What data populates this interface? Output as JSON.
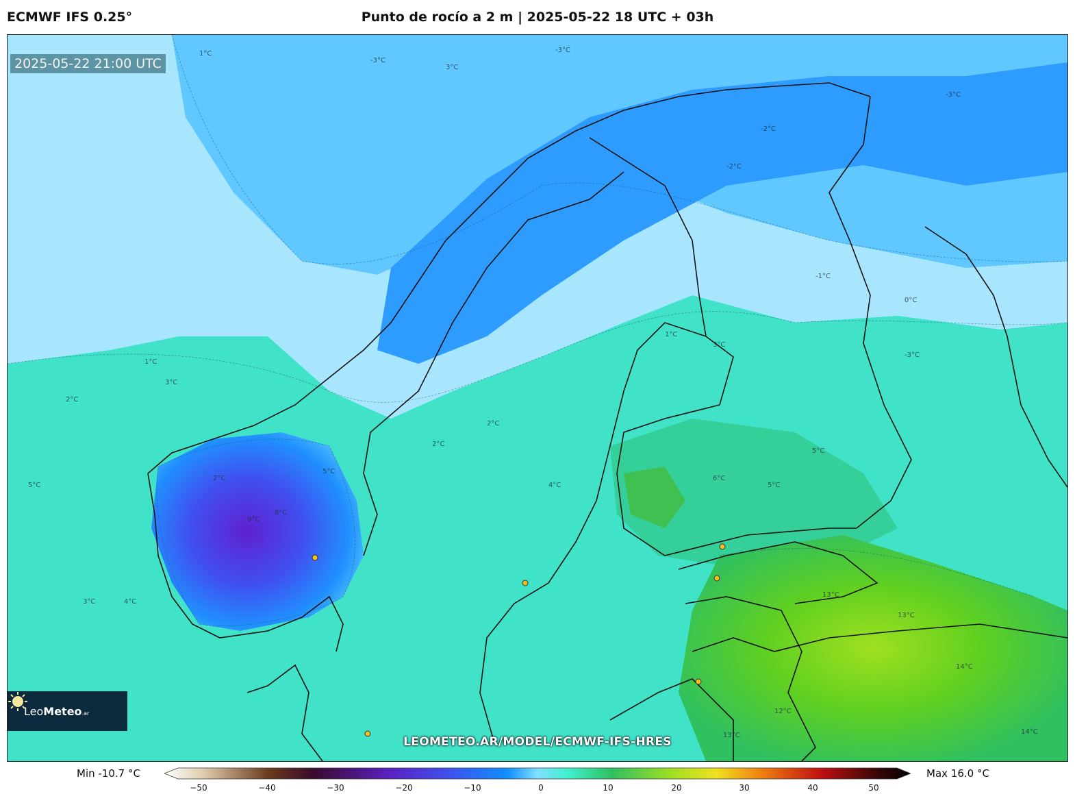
{
  "header": {
    "model": "ECMWF IFS 0.25°",
    "title": "Punto de rocío a 2 m | 2025-05-22 18 UTC + 03h"
  },
  "map": {
    "valid_time": "2025-05-22 21:00 UTC",
    "watermark": "LEOMETEO.AR/MODEL/ECMWF-IFS-HRES",
    "logo": {
      "brand_light": "Leo",
      "brand_bold": "Meteo",
      "suffix": ".ar"
    },
    "contour_labels": [
      "-3°C",
      "-2°C",
      "-1°C",
      "0°C",
      "1°C",
      "2°C",
      "3°C",
      "4°C",
      "5°C",
      "6°C",
      "8°C",
      "9°C",
      "12°C",
      "13°C",
      "14°C"
    ]
  },
  "colorbar": {
    "min_label": "Min -10.7 °C",
    "max_label": "Max 16.0 °C",
    "ticks": [
      "−50",
      "−40",
      "−30",
      "−20",
      "−10",
      "0",
      "10",
      "20",
      "30",
      "40",
      "50"
    ],
    "colors": [
      "#ffffff",
      "#5a3010",
      "#3a0a2a",
      "#5a1aa0",
      "#3040e0",
      "#10a0ff",
      "#40f0d0",
      "#30c060",
      "#c0e020",
      "#f08010",
      "#c01010",
      "#000000"
    ]
  }
}
